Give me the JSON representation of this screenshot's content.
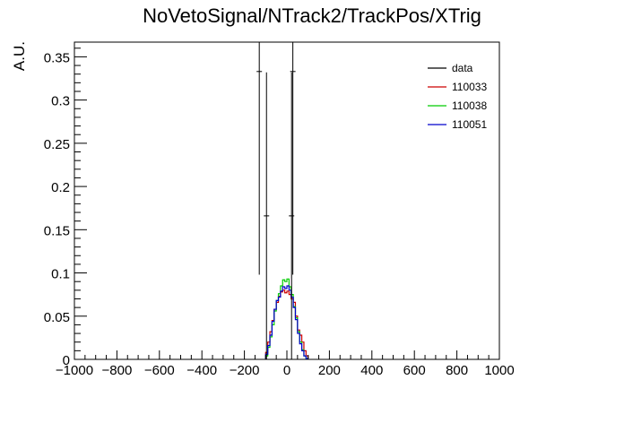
{
  "chart_data": {
    "type": "histogram",
    "title": "NoVetoSignal/NTrack2/TrackPos/XTrig",
    "xlabel": "",
    "ylabel": "A.U.",
    "xlim": [
      -1000,
      1000
    ],
    "ylim": [
      0,
      0.367
    ],
    "grid": false,
    "legend_position": "top-right",
    "x_ticks": [
      {
        "value": -1000,
        "label": "−1000"
      },
      {
        "value": -800,
        "label": "−800"
      },
      {
        "value": -600,
        "label": "−600"
      },
      {
        "value": -400,
        "label": "−400"
      },
      {
        "value": -200,
        "label": "−200"
      },
      {
        "value": 0,
        "label": "0"
      },
      {
        "value": 200,
        "label": "200"
      },
      {
        "value": 400,
        "label": "400"
      },
      {
        "value": 600,
        "label": "600"
      },
      {
        "value": 800,
        "label": "800"
      },
      {
        "value": 1000,
        "label": "1000"
      }
    ],
    "y_ticks": [
      {
        "value": 0,
        "label": "0"
      },
      {
        "value": 0.05,
        "label": "0.05"
      },
      {
        "value": 0.1,
        "label": "0.1"
      },
      {
        "value": 0.15,
        "label": "0.15"
      },
      {
        "value": 0.2,
        "label": "0.2"
      },
      {
        "value": 0.25,
        "label": "0.25"
      },
      {
        "value": 0.3,
        "label": "0.3"
      },
      {
        "value": 0.35,
        "label": "0.35"
      }
    ],
    "series": [
      {
        "name": "data",
        "color": "#000000",
        "kind": "points_with_errors",
        "points": [
          {
            "x": -130,
            "y": 0.333,
            "err": 0.235
          },
          {
            "x": -96,
            "y": 0.166,
            "err": 0.166
          },
          {
            "x": 22,
            "y": 0.166,
            "err": 0.166
          },
          {
            "x": 28,
            "y": 0.333,
            "err": 0.235
          }
        ]
      },
      {
        "name": "110033",
        "color": "#cc0000",
        "kind": "step",
        "bin_edges": [
          -100,
          -90,
          -80,
          -70,
          -60,
          -50,
          -40,
          -30,
          -20,
          -10,
          0,
          10,
          20,
          30,
          40,
          50,
          60,
          70,
          80,
          90,
          100
        ],
        "values": [
          0.008,
          0.02,
          0.032,
          0.045,
          0.058,
          0.066,
          0.073,
          0.078,
          0.08,
          0.077,
          0.079,
          0.075,
          0.07,
          0.066,
          0.05,
          0.034,
          0.028,
          0.02,
          0.01,
          0.004
        ]
      },
      {
        "name": "110038",
        "color": "#00cc00",
        "kind": "step",
        "bin_edges": [
          -100,
          -90,
          -80,
          -70,
          -60,
          -50,
          -40,
          -30,
          -20,
          -10,
          0,
          10,
          20,
          30,
          40,
          50,
          60,
          70,
          80,
          90,
          100
        ],
        "values": [
          0.004,
          0.014,
          0.026,
          0.04,
          0.056,
          0.068,
          0.076,
          0.085,
          0.092,
          0.09,
          0.093,
          0.084,
          0.075,
          0.061,
          0.048,
          0.032,
          0.02,
          0.011,
          0.004,
          0.001
        ]
      },
      {
        "name": "110051",
        "color": "#0000cc",
        "kind": "step",
        "bin_edges": [
          -100,
          -90,
          -80,
          -70,
          -60,
          -50,
          -40,
          -30,
          -20,
          -10,
          0,
          10,
          20,
          30,
          40,
          50,
          60,
          70,
          80,
          90,
          100
        ],
        "values": [
          0.006,
          0.016,
          0.028,
          0.044,
          0.058,
          0.068,
          0.072,
          0.079,
          0.084,
          0.082,
          0.085,
          0.08,
          0.072,
          0.06,
          0.046,
          0.03,
          0.018,
          0.01,
          0.004,
          0.001
        ]
      }
    ]
  }
}
